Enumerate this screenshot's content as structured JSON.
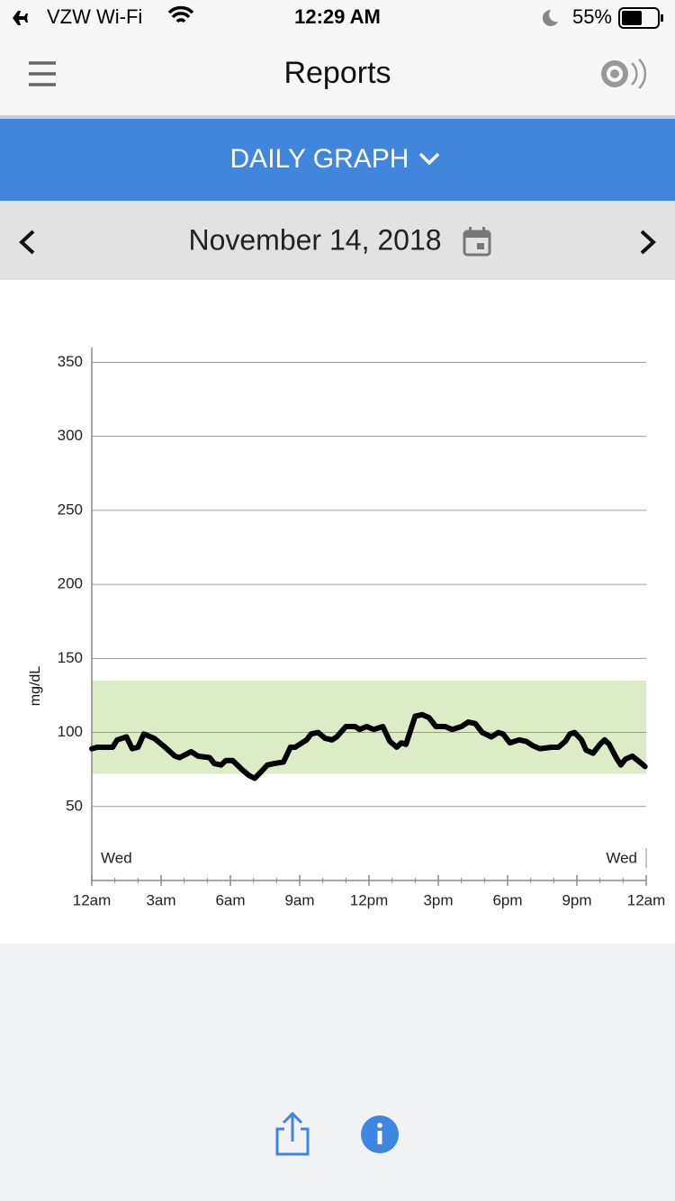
{
  "status_bar": {
    "carrier": "VZW Wi-Fi",
    "time": "12:29 AM",
    "battery": "55%"
  },
  "nav": {
    "title": "Reports"
  },
  "report_selector": "DAILY GRAPH",
  "date": "November 14, 2018",
  "chart_data": {
    "type": "line",
    "ylabel": "mg/dL",
    "color": "#000000",
    "x": [
      0,
      0.23,
      0.9,
      1.1,
      1.5,
      1.75,
      2.0,
      2.25,
      2.7,
      3.1,
      3.6,
      3.8,
      4.3,
      4.6,
      5.1,
      5.3,
      5.6,
      5.8,
      6.1,
      6.5,
      6.8,
      7.05,
      7.3,
      7.6,
      7.9,
      8.3,
      8.6,
      8.8,
      9.3,
      9.5,
      9.8,
      10.1,
      10.4,
      10.6,
      11.0,
      11.4,
      11.6,
      11.9,
      12.2,
      12.6,
      12.9,
      13.2,
      13.4,
      13.6,
      14.0,
      14.3,
      14.6,
      14.9,
      15.3,
      15.6,
      16.0,
      16.3,
      16.6,
      16.9,
      17.3,
      17.6,
      17.8,
      18.1,
      18.5,
      18.8,
      19.1,
      19.4,
      19.9,
      20.2,
      20.5,
      20.7,
      20.9,
      21.2,
      21.4,
      21.7,
      22.0,
      22.2,
      22.4,
      22.7,
      22.9,
      23.1,
      23.4,
      23.8,
      23.95
    ],
    "values": [
      89,
      90,
      90,
      95,
      97,
      89,
      90,
      99,
      96,
      91,
      84,
      83,
      87,
      84,
      83,
      79,
      78,
      81,
      81,
      75,
      71,
      69,
      73,
      78,
      79,
      80,
      90,
      90,
      95,
      99,
      100,
      96,
      95,
      97,
      104,
      104,
      102,
      104,
      102,
      104,
      94,
      90,
      93,
      92,
      111,
      112,
      110,
      104,
      104,
      102,
      104,
      107,
      106,
      100,
      97,
      100,
      99,
      93,
      95,
      94,
      91,
      89,
      90,
      90,
      94,
      99,
      100,
      95,
      88,
      86,
      92,
      95,
      92,
      83,
      78,
      82,
      84,
      79,
      77
    ],
    "xlim": [
      0,
      24
    ],
    "xticks": [
      {
        "value": 0,
        "label": "12am"
      },
      {
        "value": 3,
        "label": "3am"
      },
      {
        "value": 6,
        "label": "6am"
      },
      {
        "value": 9,
        "label": "9am"
      },
      {
        "value": 12,
        "label": "12pm"
      },
      {
        "value": 15,
        "label": "3pm"
      },
      {
        "value": 18,
        "label": "6pm"
      },
      {
        "value": 21,
        "label": "9pm"
      },
      {
        "value": 24,
        "label": "12am"
      }
    ],
    "xminorticks": [
      1,
      2,
      4,
      5,
      7,
      8,
      10,
      11,
      13,
      14,
      16,
      17,
      19,
      20,
      22,
      23
    ],
    "ylim": [
      0,
      360
    ],
    "yticks": [
      50,
      100,
      150,
      200,
      250,
      300,
      350
    ],
    "grid": true,
    "target_range": [
      72,
      135
    ],
    "target_color": "#dcedc5",
    "annotations": [
      {
        "text": "Wed",
        "x": 0
      },
      {
        "text": "Wed",
        "x": 24
      }
    ]
  }
}
